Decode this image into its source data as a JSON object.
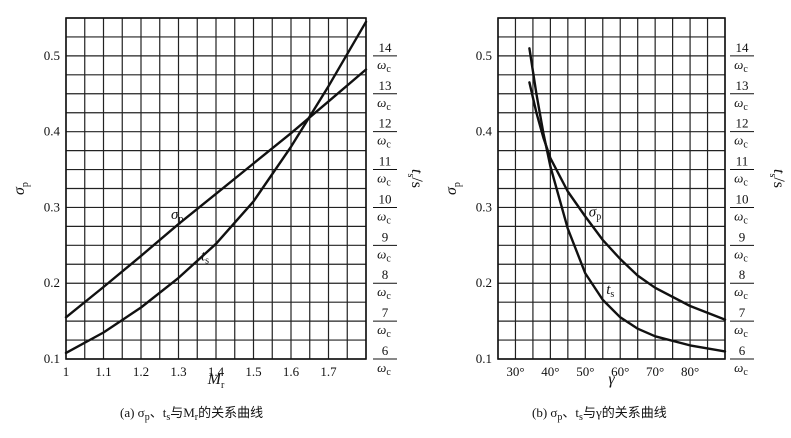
{
  "chart_data": [
    {
      "id": "a",
      "type": "line",
      "caption": "(a) σp、ts与Mr的关系曲线",
      "caption_parts": [
        "(a) σ",
        "p",
        "、t",
        "s",
        "与M",
        "r",
        "的关系曲线"
      ],
      "xlabel": "M",
      "xlabel_sub": "r",
      "ylabel": "σ",
      "ylabel_sub": "p",
      "y2label": "t",
      "y2label_sub": "s",
      "y2label_unit": "/s",
      "xlim": [
        1.0,
        1.8
      ],
      "ylim": [
        0.1,
        0.55
      ],
      "x_ticks": [
        {
          "value": 1.0,
          "label": "1"
        },
        {
          "value": 1.1,
          "label": "1.1"
        },
        {
          "value": 1.2,
          "label": "1.2"
        },
        {
          "value": 1.3,
          "label": "1.3"
        },
        {
          "value": 1.4,
          "label": "1.4"
        },
        {
          "value": 1.5,
          "label": "1.5"
        },
        {
          "value": 1.6,
          "label": "1.6"
        },
        {
          "value": 1.7,
          "label": "1.7"
        }
      ],
      "y_ticks": [
        {
          "value": 0.1,
          "label": "0.1"
        },
        {
          "value": 0.2,
          "label": "0.2"
        },
        {
          "value": 0.3,
          "label": "0.3"
        },
        {
          "value": 0.4,
          "label": "0.4"
        },
        {
          "value": 0.5,
          "label": "0.5"
        }
      ],
      "y2_ticks": [
        {
          "value": 0.1,
          "num": "6",
          "den": "ω",
          "den_sub": "c"
        },
        {
          "value": 0.15,
          "num": "7",
          "den": "ω",
          "den_sub": "c"
        },
        {
          "value": 0.2,
          "num": "8",
          "den": "ω",
          "den_sub": "c"
        },
        {
          "value": 0.25,
          "num": "9",
          "den": "ω",
          "den_sub": "c"
        },
        {
          "value": 0.3,
          "num": "10",
          "den": "ω",
          "den_sub": "c"
        },
        {
          "value": 0.35,
          "num": "11",
          "den": "ω",
          "den_sub": "c"
        },
        {
          "value": 0.4,
          "num": "12",
          "den": "ω",
          "den_sub": "c"
        },
        {
          "value": 0.45,
          "num": "13",
          "den": "ω",
          "den_sub": "c"
        },
        {
          "value": 0.5,
          "num": "14",
          "den": "ω",
          "den_sub": "c"
        }
      ],
      "x_grid_step": 0.05,
      "y_grid_step": 0.025,
      "series": [
        {
          "name": "σ",
          "name_sub": "p",
          "label_at": [
            1.28,
            0.285
          ],
          "points": [
            [
              1.0,
              0.155
            ],
            [
              1.1,
              0.195
            ],
            [
              1.2,
              0.236
            ],
            [
              1.3,
              0.278
            ],
            [
              1.4,
              0.318
            ],
            [
              1.5,
              0.358
            ],
            [
              1.6,
              0.398
            ],
            [
              1.7,
              0.44
            ],
            [
              1.8,
              0.482
            ]
          ]
        },
        {
          "name": "t",
          "name_sub": "s",
          "label_at": [
            1.36,
            0.23
          ],
          "points": [
            [
              1.0,
              0.108
            ],
            [
              1.1,
              0.135
            ],
            [
              1.2,
              0.168
            ],
            [
              1.3,
              0.207
            ],
            [
              1.4,
              0.252
            ],
            [
              1.5,
              0.308
            ],
            [
              1.6,
              0.38
            ],
            [
              1.7,
              0.46
            ],
            [
              1.8,
              0.545
            ]
          ]
        }
      ]
    },
    {
      "id": "b",
      "type": "line",
      "caption": "(b) σp、ts与γ的关系曲线",
      "caption_parts": [
        "(b) σ",
        "p",
        "、t",
        "s",
        "与γ的关系曲线"
      ],
      "xlabel": "γ",
      "xlabel_sub": "",
      "ylabel": "σ",
      "ylabel_sub": "p",
      "y2label": "t",
      "y2label_sub": "s",
      "y2label_unit": "/s",
      "xlim": [
        25,
        90
      ],
      "ylim": [
        0.1,
        0.55
      ],
      "x_ticks": [
        {
          "value": 30,
          "label": "30°"
        },
        {
          "value": 40,
          "label": "40°"
        },
        {
          "value": 50,
          "label": "50°"
        },
        {
          "value": 60,
          "label": "60°"
        },
        {
          "value": 70,
          "label": "70°"
        },
        {
          "value": 80,
          "label": "80°"
        }
      ],
      "y_ticks": [
        {
          "value": 0.1,
          "label": "0.1"
        },
        {
          "value": 0.2,
          "label": "0.2"
        },
        {
          "value": 0.3,
          "label": "0.3"
        },
        {
          "value": 0.4,
          "label": "0.4"
        },
        {
          "value": 0.5,
          "label": "0.5"
        }
      ],
      "y2_ticks": [
        {
          "value": 0.1,
          "num": "6",
          "den": "ω",
          "den_sub": "c"
        },
        {
          "value": 0.15,
          "num": "7",
          "den": "ω",
          "den_sub": "c"
        },
        {
          "value": 0.2,
          "num": "8",
          "den": "ω",
          "den_sub": "c"
        },
        {
          "value": 0.25,
          "num": "9",
          "den": "ω",
          "den_sub": "c"
        },
        {
          "value": 0.3,
          "num": "10",
          "den": "ω",
          "den_sub": "c"
        },
        {
          "value": 0.35,
          "num": "11",
          "den": "ω",
          "den_sub": "c"
        },
        {
          "value": 0.4,
          "num": "12",
          "den": "ω",
          "den_sub": "c"
        },
        {
          "value": 0.45,
          "num": "13",
          "den": "ω",
          "den_sub": "c"
        },
        {
          "value": 0.5,
          "num": "14",
          "den": "ω",
          "den_sub": "c"
        }
      ],
      "x_grid_step": 5,
      "y_grid_step": 0.025,
      "series": [
        {
          "name": "σ",
          "name_sub": "p",
          "label_at": [
            51,
            0.288
          ],
          "points": [
            [
              34,
              0.465
            ],
            [
              36,
              0.425
            ],
            [
              38,
              0.392
            ],
            [
              40,
              0.365
            ],
            [
              45,
              0.321
            ],
            [
              50,
              0.288
            ],
            [
              55,
              0.257
            ],
            [
              60,
              0.232
            ],
            [
              65,
              0.21
            ],
            [
              70,
              0.194
            ],
            [
              80,
              0.17
            ],
            [
              90,
              0.152
            ]
          ]
        },
        {
          "name": "t",
          "name_sub": "s",
          "label_at": [
            56,
            0.186
          ],
          "points": [
            [
              34,
              0.51
            ],
            [
              36,
              0.45
            ],
            [
              38,
              0.398
            ],
            [
              40,
              0.354
            ],
            [
              45,
              0.272
            ],
            [
              50,
              0.213
            ],
            [
              55,
              0.178
            ],
            [
              60,
              0.155
            ],
            [
              65,
              0.14
            ],
            [
              70,
              0.13
            ],
            [
              80,
              0.118
            ],
            [
              90,
              0.11
            ]
          ]
        }
      ]
    }
  ]
}
